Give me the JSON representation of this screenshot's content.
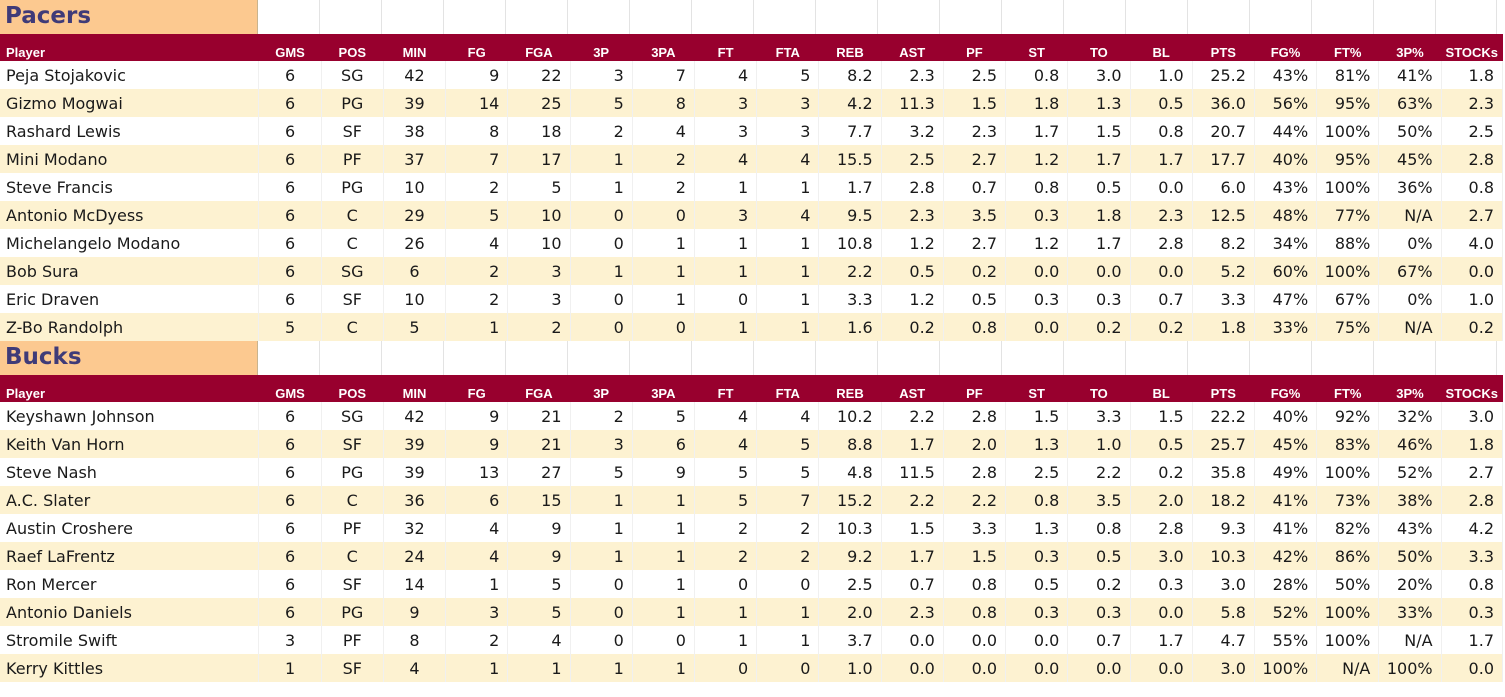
{
  "columns": [
    "Player",
    "GMS",
    "POS",
    "MIN",
    "FG",
    "FGA",
    "3P",
    "3PA",
    "FT",
    "FTA",
    "REB",
    "AST",
    "PF",
    "ST",
    "TO",
    "BL",
    "PTS",
    "FG%",
    "FT%",
    "3P%",
    "STOCKs"
  ],
  "teams": [
    {
      "name": "Pacers",
      "rows": [
        [
          "Peja Stojakovic",
          "6",
          "SG",
          "42",
          "9",
          "22",
          "3",
          "7",
          "4",
          "5",
          "8.2",
          "2.3",
          "2.5",
          "0.8",
          "3.0",
          "1.0",
          "25.2",
          "43%",
          "81%",
          "41%",
          "1.8"
        ],
        [
          "Gizmo Mogwai",
          "6",
          "PG",
          "39",
          "14",
          "25",
          "5",
          "8",
          "3",
          "3",
          "4.2",
          "11.3",
          "1.5",
          "1.8",
          "1.3",
          "0.5",
          "36.0",
          "56%",
          "95%",
          "63%",
          "2.3"
        ],
        [
          "Rashard Lewis",
          "6",
          "SF",
          "38",
          "8",
          "18",
          "2",
          "4",
          "3",
          "3",
          "7.7",
          "3.2",
          "2.3",
          "1.7",
          "1.5",
          "0.8",
          "20.7",
          "44%",
          "100%",
          "50%",
          "2.5"
        ],
        [
          "Mini Modano",
          "6",
          "PF",
          "37",
          "7",
          "17",
          "1",
          "2",
          "4",
          "4",
          "15.5",
          "2.5",
          "2.7",
          "1.2",
          "1.7",
          "1.7",
          "17.7",
          "40%",
          "95%",
          "45%",
          "2.8"
        ],
        [
          "Steve Francis",
          "6",
          "PG",
          "10",
          "2",
          "5",
          "1",
          "2",
          "1",
          "1",
          "1.7",
          "2.8",
          "0.7",
          "0.8",
          "0.5",
          "0.0",
          "6.0",
          "43%",
          "100%",
          "36%",
          "0.8"
        ],
        [
          "Antonio McDyess",
          "6",
          "C",
          "29",
          "5",
          "10",
          "0",
          "0",
          "3",
          "4",
          "9.5",
          "2.3",
          "3.5",
          "0.3",
          "1.8",
          "2.3",
          "12.5",
          "48%",
          "77%",
          "N/A",
          "2.7"
        ],
        [
          "Michelangelo Modano",
          "6",
          "C",
          "26",
          "4",
          "10",
          "0",
          "1",
          "1",
          "1",
          "10.8",
          "1.2",
          "2.7",
          "1.2",
          "1.7",
          "2.8",
          "8.2",
          "34%",
          "88%",
          "0%",
          "4.0"
        ],
        [
          "Bob Sura",
          "6",
          "SG",
          "6",
          "2",
          "3",
          "1",
          "1",
          "1",
          "1",
          "2.2",
          "0.5",
          "0.2",
          "0.0",
          "0.0",
          "0.0",
          "5.2",
          "60%",
          "100%",
          "67%",
          "0.0"
        ],
        [
          "Eric Draven",
          "6",
          "SF",
          "10",
          "2",
          "3",
          "0",
          "1",
          "0",
          "1",
          "3.3",
          "1.2",
          "0.5",
          "0.3",
          "0.3",
          "0.7",
          "3.3",
          "47%",
          "67%",
          "0%",
          "1.0"
        ],
        [
          "Z-Bo Randolph",
          "5",
          "C",
          "5",
          "1",
          "2",
          "0",
          "0",
          "1",
          "1",
          "1.6",
          "0.2",
          "0.8",
          "0.0",
          "0.2",
          "0.2",
          "1.8",
          "33%",
          "75%",
          "N/A",
          "0.2"
        ]
      ]
    },
    {
      "name": "Bucks",
      "rows": [
        [
          "Keyshawn Johnson",
          "6",
          "SG",
          "42",
          "9",
          "21",
          "2",
          "5",
          "4",
          "4",
          "10.2",
          "2.2",
          "2.8",
          "1.5",
          "3.3",
          "1.5",
          "22.2",
          "40%",
          "92%",
          "32%",
          "3.0"
        ],
        [
          "Keith Van Horn",
          "6",
          "SF",
          "39",
          "9",
          "21",
          "3",
          "6",
          "4",
          "5",
          "8.8",
          "1.7",
          "2.0",
          "1.3",
          "1.0",
          "0.5",
          "25.7",
          "45%",
          "83%",
          "46%",
          "1.8"
        ],
        [
          "Steve Nash",
          "6",
          "PG",
          "39",
          "13",
          "27",
          "5",
          "9",
          "5",
          "5",
          "4.8",
          "11.5",
          "2.8",
          "2.5",
          "2.2",
          "0.2",
          "35.8",
          "49%",
          "100%",
          "52%",
          "2.7"
        ],
        [
          "A.C. Slater",
          "6",
          "C",
          "36",
          "6",
          "15",
          "1",
          "1",
          "5",
          "7",
          "15.2",
          "2.2",
          "2.2",
          "0.8",
          "3.5",
          "2.0",
          "18.2",
          "41%",
          "73%",
          "38%",
          "2.8"
        ],
        [
          "Austin Croshere",
          "6",
          "PF",
          "32",
          "4",
          "9",
          "1",
          "1",
          "2",
          "2",
          "10.3",
          "1.5",
          "3.3",
          "1.3",
          "0.8",
          "2.8",
          "9.3",
          "41%",
          "82%",
          "43%",
          "4.2"
        ],
        [
          "Raef LaFrentz",
          "6",
          "C",
          "24",
          "4",
          "9",
          "1",
          "1",
          "2",
          "2",
          "9.2",
          "1.7",
          "1.5",
          "0.3",
          "0.5",
          "3.0",
          "10.3",
          "42%",
          "86%",
          "50%",
          "3.3"
        ],
        [
          "Ron Mercer",
          "6",
          "SF",
          "14",
          "1",
          "5",
          "0",
          "1",
          "0",
          "0",
          "2.5",
          "0.7",
          "0.8",
          "0.5",
          "0.2",
          "0.3",
          "3.0",
          "28%",
          "50%",
          "20%",
          "0.8"
        ],
        [
          "Antonio Daniels",
          "6",
          "PG",
          "9",
          "3",
          "5",
          "0",
          "1",
          "1",
          "1",
          "2.0",
          "2.3",
          "0.8",
          "0.3",
          "0.3",
          "0.0",
          "5.8",
          "52%",
          "100%",
          "33%",
          "0.3"
        ],
        [
          "Stromile Swift",
          "3",
          "PF",
          "8",
          "2",
          "4",
          "0",
          "0",
          "1",
          "1",
          "3.7",
          "0.0",
          "0.0",
          "0.0",
          "0.7",
          "1.7",
          "4.7",
          "55%",
          "100%",
          "N/A",
          "1.7"
        ],
        [
          "Kerry Kittles",
          "1",
          "SF",
          "4",
          "1",
          "1",
          "1",
          "1",
          "0",
          "0",
          "1.0",
          "0.0",
          "0.0",
          "0.0",
          "0.0",
          "0.0",
          "3.0",
          "100%",
          "N/A",
          "100%",
          "0.0"
        ]
      ]
    }
  ]
}
